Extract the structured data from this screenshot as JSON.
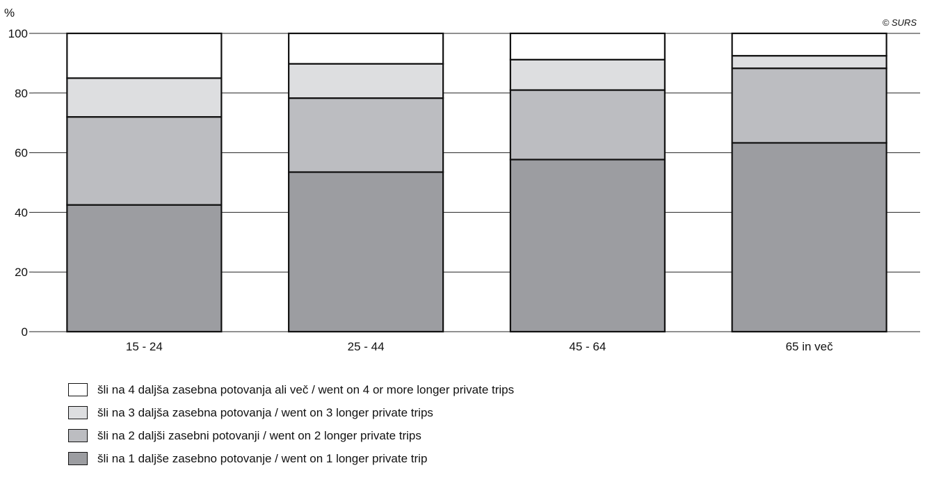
{
  "chart_data": {
    "type": "bar",
    "stacked": true,
    "unit_label": "%",
    "credit": "© SURS",
    "ylim": [
      0,
      100
    ],
    "yticks": [
      0,
      20,
      40,
      60,
      80,
      100
    ],
    "grid": true,
    "categories": [
      "15 - 24",
      "25 - 44",
      "45 - 64",
      "65 in več"
    ],
    "series": [
      {
        "name": "šli na 1 daljše zasebno potovanje / went on 1 longer private trip",
        "color": "#9c9da1",
        "values": [
          42.5,
          53.5,
          57.7,
          63.3
        ]
      },
      {
        "name": "šli na 2 daljši zasebni potovanji / went on 2 longer private trips",
        "color": "#bcbdc1",
        "values": [
          29.5,
          24.8,
          23.3,
          25.0
        ]
      },
      {
        "name": "šli na 3 daljša zasebna potovanja / went on 3 longer private trips",
        "color": "#dddee0",
        "values": [
          13.0,
          11.5,
          10.2,
          4.2
        ]
      },
      {
        "name": "šli na 4 daljša zasebna potovanja ali več / went on 4 or more longer private trips",
        "color": "#ffffff",
        "values": [
          15.0,
          10.2,
          8.8,
          7.5
        ]
      }
    ],
    "legend_order": [
      3,
      2,
      1,
      0
    ],
    "legend_placement": "bottom-left"
  }
}
